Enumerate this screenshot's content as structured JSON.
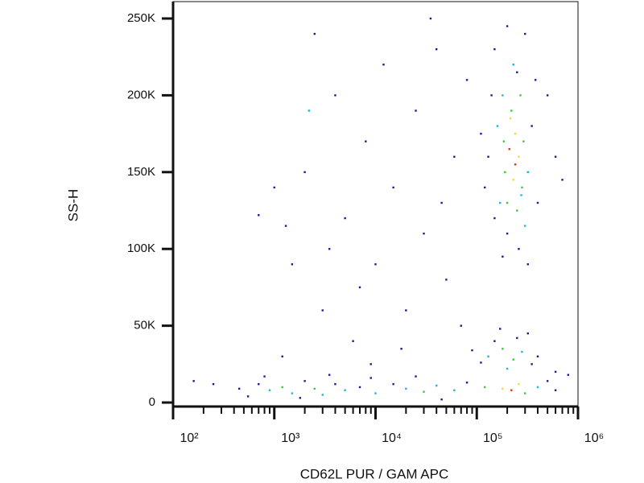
{
  "chart_data": {
    "type": "scatter",
    "x_label": "CD62L PUR / GAM APC",
    "y_label": "SS-H",
    "xscale": "log",
    "xlim": [
      100,
      1000000
    ],
    "ylim": [
      -2600,
      261000
    ],
    "xticks": [
      {
        "value": 100,
        "label": "10²"
      },
      {
        "value": 1000,
        "label": "10³"
      },
      {
        "value": 10000,
        "label": "10⁴"
      },
      {
        "value": 100000,
        "label": "10⁵"
      },
      {
        "value": 1000000,
        "label": "10⁶"
      }
    ],
    "xminorticks": [
      200,
      300,
      400,
      500,
      600,
      700,
      800,
      900,
      2000,
      3000,
      4000,
      5000,
      6000,
      7000,
      8000,
      9000,
      20000,
      30000,
      40000,
      50000,
      60000,
      70000,
      80000,
      90000,
      200000,
      300000,
      400000,
      500000,
      600000,
      700000,
      800000,
      900000
    ],
    "yticks": [
      0,
      {
        "value": 50000,
        "label": "50K"
      },
      {
        "value": 100000,
        "label": "100K"
      },
      {
        "value": 150000,
        "label": "150K"
      },
      {
        "value": 200000,
        "label": "200K"
      },
      {
        "value": 250000,
        "label": "250K"
      }
    ],
    "points": {
      "x": [
        150000,
        200000,
        250000,
        300000,
        180000,
        220000,
        240000,
        210000,
        260000,
        190000,
        230000,
        280000,
        170000,
        250000,
        300000,
        200000,
        150000,
        130000,
        350000,
        320000,
        270000,
        160000,
        120000,
        380000,
        230000,
        290000,
        200000,
        260000,
        180000,
        320000,
        140000,
        110000,
        240000,
        215000,
        275000,
        185000,
        400000,
        600000,
        500000,
        700000,
        700,
        900,
        1200,
        1500,
        2000,
        2500,
        3000,
        4000,
        5000,
        7000,
        10000,
        15000,
        20000,
        30000,
        40000,
        60000,
        80000,
        120000,
        180000,
        220000,
        260000,
        300000,
        400000,
        500000,
        600000,
        450,
        550,
        800,
        250,
        160,
        3500,
        9000,
        25000,
        1800,
        45000,
        130000,
        180000,
        230000,
        280000,
        350000,
        150000,
        250000,
        200000,
        320000,
        110000,
        400000,
        600000,
        90000,
        170000,
        800000,
        1500,
        2000,
        3000,
        4000,
        5000,
        6000,
        8000,
        10000,
        12000,
        15000,
        20000,
        25000,
        30000,
        40000,
        50000,
        60000,
        70000,
        80000,
        1200,
        2500,
        1000,
        3500,
        18000,
        35000,
        7000,
        45000,
        2200,
        9000,
        700,
        1300
      ],
      "y": [
        230000,
        245000,
        215000,
        240000,
        200000,
        190000,
        175000,
        165000,
        160000,
        150000,
        145000,
        140000,
        130000,
        125000,
        115000,
        110000,
        120000,
        160000,
        180000,
        150000,
        200000,
        180000,
        140000,
        210000,
        220000,
        170000,
        130000,
        100000,
        95000,
        90000,
        200000,
        175000,
        155000,
        185000,
        135000,
        170000,
        130000,
        160000,
        200000,
        145000,
        12000,
        8000,
        10000,
        6000,
        14000,
        9000,
        5000,
        12000,
        8000,
        10000,
        6000,
        12000,
        9000,
        7000,
        11000,
        8000,
        13000,
        10000,
        9000,
        8000,
        12000,
        6000,
        10000,
        14000,
        8000,
        9000,
        4000,
        17000,
        12000,
        14000,
        18000,
        16000,
        17000,
        3000,
        2000,
        30000,
        35000,
        28000,
        33000,
        25000,
        40000,
        42000,
        22000,
        45000,
        26000,
        30000,
        20000,
        34000,
        48000,
        18000,
        90000,
        150000,
        60000,
        200000,
        120000,
        40000,
        170000,
        90000,
        220000,
        140000,
        60000,
        190000,
        110000,
        230000,
        80000,
        160000,
        50000,
        210000,
        30000,
        240000,
        140000,
        100000,
        35000,
        250000,
        75000,
        130000,
        190000,
        25000,
        122000,
        115000
      ],
      "colors": [
        "#1a1a9c",
        "#1a1a9c",
        "#1a1a9c",
        "#1a1a9c",
        "#19b5e6",
        "#3ec83e",
        "#f0e020",
        "#e8301a",
        "#f0e020",
        "#3ec83e",
        "#f0e020",
        "#3ec83e",
        "#19b5e6",
        "#3ec83e",
        "#19b5e6",
        "#1a1a9c",
        "#1a1a9c",
        "#1a1a9c",
        "#1a1a9c",
        "#19b5e6",
        "#3ec83e",
        "#19b5e6",
        "#1a1a9c",
        "#1a1a9c",
        "#19b5e6",
        "#3ec83e",
        "#3ec83e",
        "#1a1a9c",
        "#1a1a9c",
        "#1a1a9c",
        "#1a1a9c",
        "#1a1a9c",
        "#e8301a",
        "#f0e020",
        "#19b5e6",
        "#3ec83e",
        "#1a1a9c",
        "#1a1a9c",
        "#1a1a9c",
        "#1a1a9c",
        "#1a1a9c",
        "#19b5e6",
        "#3ec83e",
        "#19b5e6",
        "#1a1a9c",
        "#3ec83e",
        "#19b5e6",
        "#1a1a9c",
        "#19b5e6",
        "#1a1a9c",
        "#19b5e6",
        "#1a1a9c",
        "#19b5e6",
        "#3ec83e",
        "#19b5e6",
        "#19b5e6",
        "#1a1a9c",
        "#3ec83e",
        "#f0e020",
        "#e8301a",
        "#f0e020",
        "#3ec83e",
        "#19b5e6",
        "#1a1a9c",
        "#1a1a9c",
        "#1a1a9c",
        "#1a1a9c",
        "#1a1a9c",
        "#1a1a9c",
        "#1a1a9c",
        "#1a1a9c",
        "#1a1a9c",
        "#1a1a9c",
        "#1a1a9c",
        "#1a1a9c",
        "#19b5e6",
        "#3ec83e",
        "#3ec83e",
        "#19b5e6",
        "#1a1a9c",
        "#1a1a9c",
        "#1a1a9c",
        "#19b5e6",
        "#1a1a9c",
        "#1a1a9c",
        "#1a1a9c",
        "#1a1a9c",
        "#1a1a9c",
        "#1a1a9c",
        "#1a1a9c",
        "#1a1a9c",
        "#1a1a9c",
        "#1a1a9c",
        "#1a1a9c",
        "#1a1a9c",
        "#1a1a9c",
        "#1a1a9c",
        "#1a1a9c",
        "#1a1a9c",
        "#1a1a9c",
        "#1a1a9c",
        "#1a1a9c",
        "#1a1a9c",
        "#1a1a9c",
        "#1a1a9c",
        "#1a1a9c",
        "#1a1a9c",
        "#1a1a9c",
        "#1a1a9c",
        "#1a1a9c",
        "#1a1a9c",
        "#1a1a9c",
        "#1a1a9c",
        "#1a1a9c",
        "#1a1a9c",
        "#1a1a9c",
        "#19b5e6",
        "#1a1a9c",
        "#1a1a9c",
        "#1a1a9c"
      ]
    },
    "frame_color": "#111111"
  }
}
